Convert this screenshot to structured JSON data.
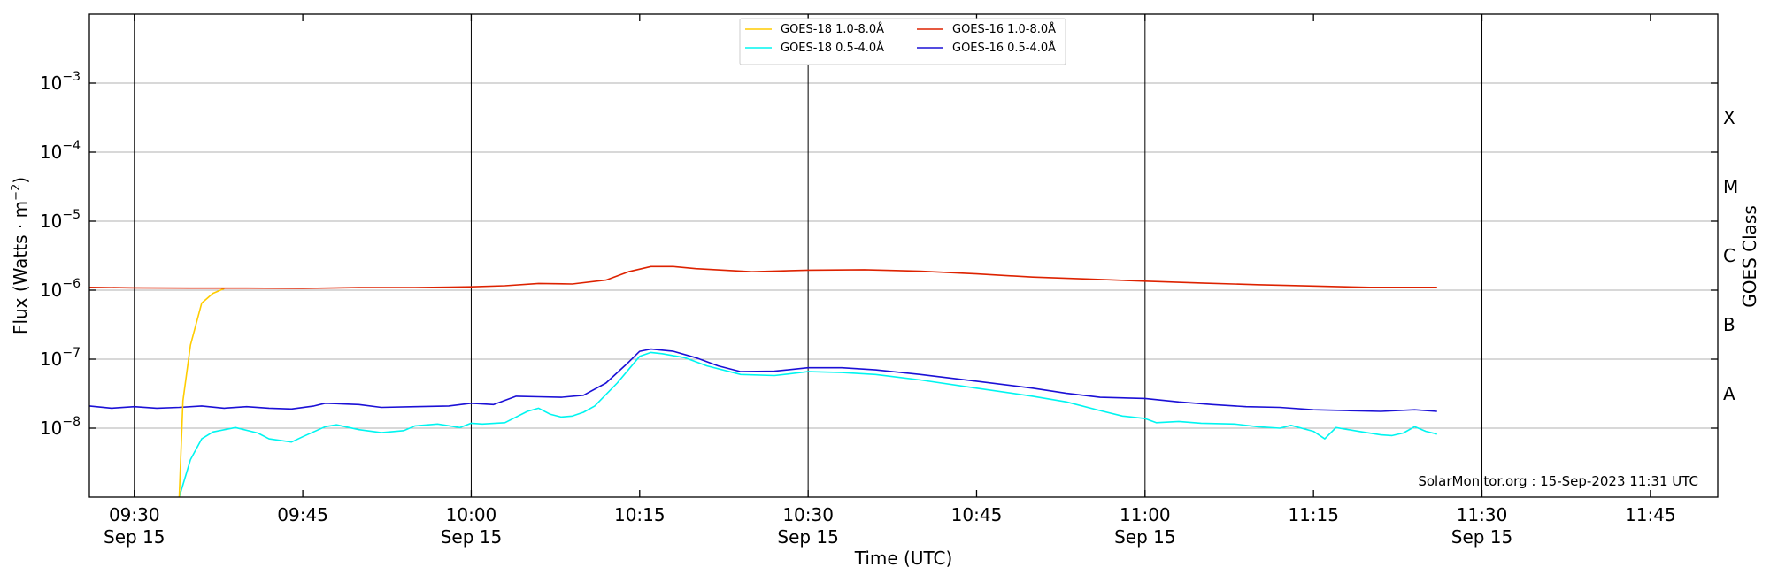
{
  "chart_data": {
    "type": "line",
    "title": "",
    "xlabel": "Time (UTC)",
    "ylabel": "Flux (Watts · m",
    "ylabel_sup": "−2",
    "ylabel_close": ")",
    "y2label": "GOES Class",
    "yscale": "log",
    "xlim": [
      "09:26",
      "11:51"
    ],
    "ylim": [
      1e-09,
      0.01
    ],
    "grid": "horizontal",
    "legend_position": "top-center",
    "credit": "SolarMonitor.org : 15-Sep-2023 11:31 UTC",
    "x_ticks": [
      {
        "time": "09:30",
        "label": "09:30",
        "date": "Sep 15",
        "vline": true
      },
      {
        "time": "09:45",
        "label": "09:45",
        "date": "",
        "vline": false
      },
      {
        "time": "10:00",
        "label": "10:00",
        "date": "Sep 15",
        "vline": true
      },
      {
        "time": "10:15",
        "label": "10:15",
        "date": "",
        "vline": false
      },
      {
        "time": "10:30",
        "label": "10:30",
        "date": "Sep 15",
        "vline": true
      },
      {
        "time": "10:45",
        "label": "10:45",
        "date": "",
        "vline": false
      },
      {
        "time": "11:00",
        "label": "11:00",
        "date": "Sep 15",
        "vline": true
      },
      {
        "time": "11:15",
        "label": "11:15",
        "date": "",
        "vline": false
      },
      {
        "time": "11:30",
        "label": "11:30",
        "date": "Sep 15",
        "vline": true
      },
      {
        "time": "11:45",
        "label": "11:45",
        "date": "",
        "vline": false
      }
    ],
    "y_ticks": [
      {
        "value": 1e-08,
        "base": "10",
        "exp": "−8"
      },
      {
        "value": 1e-07,
        "base": "10",
        "exp": "−7"
      },
      {
        "value": 1e-06,
        "base": "10",
        "exp": "−6"
      },
      {
        "value": 1e-05,
        "base": "10",
        "exp": "−5"
      },
      {
        "value": 0.0001,
        "base": "10",
        "exp": "−4"
      },
      {
        "value": 0.001,
        "base": "10",
        "exp": "−3"
      }
    ],
    "goes_classes": [
      {
        "label": "A",
        "value": 3.16e-08
      },
      {
        "label": "B",
        "value": 3.16e-07
      },
      {
        "label": "C",
        "value": 3.16e-06
      },
      {
        "label": "M",
        "value": 3.16e-05
      },
      {
        "label": "X",
        "value": 0.000316
      }
    ],
    "series": [
      {
        "name": "GOES-18 1.0-8.0Å",
        "color": "#ffcc00",
        "points": [
          [
            "09:34",
            1e-09
          ],
          [
            "09:34:20",
            2.5e-08
          ],
          [
            "09:35",
            1.6e-07
          ],
          [
            "09:36",
            6.5e-07
          ],
          [
            "09:37",
            9e-07
          ],
          [
            "09:38",
            1.05e-06
          ]
        ]
      },
      {
        "name": "GOES-16 1.0-8.0Å",
        "color": "#dd2200",
        "points": [
          [
            "09:26",
            1.1e-06
          ],
          [
            "09:30",
            1.08e-06
          ],
          [
            "09:35",
            1.07e-06
          ],
          [
            "09:40",
            1.07e-06
          ],
          [
            "09:45",
            1.06e-06
          ],
          [
            "09:50",
            1.09e-06
          ],
          [
            "09:55",
            1.09e-06
          ],
          [
            "10:00",
            1.12e-06
          ],
          [
            "10:03",
            1.16e-06
          ],
          [
            "10:06",
            1.25e-06
          ],
          [
            "10:09",
            1.23e-06
          ],
          [
            "10:12",
            1.4e-06
          ],
          [
            "10:14",
            1.85e-06
          ],
          [
            "10:16",
            2.2e-06
          ],
          [
            "10:18",
            2.2e-06
          ],
          [
            "10:20",
            2.05e-06
          ],
          [
            "10:25",
            1.85e-06
          ],
          [
            "10:30",
            1.95e-06
          ],
          [
            "10:35",
            1.98e-06
          ],
          [
            "10:40",
            1.88e-06
          ],
          [
            "10:45",
            1.72e-06
          ],
          [
            "10:50",
            1.55e-06
          ],
          [
            "10:55",
            1.45e-06
          ],
          [
            "11:00",
            1.35e-06
          ],
          [
            "11:05",
            1.27e-06
          ],
          [
            "11:10",
            1.2e-06
          ],
          [
            "11:15",
            1.15e-06
          ],
          [
            "11:20",
            1.1e-06
          ],
          [
            "11:26",
            1.1e-06
          ]
        ]
      },
      {
        "name": "GOES-18 0.5-4.0Å",
        "color": "#00f5f0",
        "points": [
          [
            "09:34",
            1e-09
          ],
          [
            "09:35",
            3.5e-09
          ],
          [
            "09:36",
            7e-09
          ],
          [
            "09:37",
            8.8e-09
          ],
          [
            "09:39",
            1.02e-08
          ],
          [
            "09:41",
            8.5e-09
          ],
          [
            "09:42",
            7e-09
          ],
          [
            "09:44",
            6.3e-09
          ],
          [
            "09:45",
            7.5e-09
          ],
          [
            "09:47",
            1.05e-08
          ],
          [
            "09:48",
            1.12e-08
          ],
          [
            "09:50",
            9.5e-09
          ],
          [
            "09:52",
            8.6e-09
          ],
          [
            "09:54",
            9.2e-09
          ],
          [
            "09:55",
            1.08e-08
          ],
          [
            "09:57",
            1.15e-08
          ],
          [
            "09:59",
            1.02e-08
          ],
          [
            "10:00",
            1.18e-08
          ],
          [
            "10:01",
            1.15e-08
          ],
          [
            "10:03",
            1.2e-08
          ],
          [
            "10:05",
            1.75e-08
          ],
          [
            "10:06",
            1.95e-08
          ],
          [
            "10:07",
            1.6e-08
          ],
          [
            "10:08",
            1.45e-08
          ],
          [
            "10:09",
            1.5e-08
          ],
          [
            "10:10",
            1.7e-08
          ],
          [
            "10:11",
            2.1e-08
          ],
          [
            "10:13",
            4.5e-08
          ],
          [
            "10:15",
            1.1e-07
          ],
          [
            "10:16",
            1.25e-07
          ],
          [
            "10:17",
            1.2e-07
          ],
          [
            "10:19",
            1.05e-07
          ],
          [
            "10:21",
            8e-08
          ],
          [
            "10:24",
            6e-08
          ],
          [
            "10:27",
            5.8e-08
          ],
          [
            "10:30",
            6.6e-08
          ],
          [
            "10:33",
            6.4e-08
          ],
          [
            "10:36",
            6e-08
          ],
          [
            "10:40",
            5e-08
          ],
          [
            "10:45",
            3.8e-08
          ],
          [
            "10:50",
            2.9e-08
          ],
          [
            "10:53",
            2.4e-08
          ],
          [
            "10:56",
            1.8e-08
          ],
          [
            "10:58",
            1.5e-08
          ],
          [
            "11:00",
            1.38e-08
          ],
          [
            "11:01",
            1.2e-08
          ],
          [
            "11:03",
            1.25e-08
          ],
          [
            "11:05",
            1.18e-08
          ],
          [
            "11:08",
            1.15e-08
          ],
          [
            "11:10",
            1.05e-08
          ],
          [
            "11:12",
            1e-08
          ],
          [
            "11:13",
            1.1e-08
          ],
          [
            "11:15",
            9e-09
          ],
          [
            "11:16",
            7e-09
          ],
          [
            "11:17",
            1.02e-08
          ],
          [
            "11:19",
            9e-09
          ],
          [
            "11:21",
            8e-09
          ],
          [
            "11:22",
            7.8e-09
          ],
          [
            "11:23",
            8.5e-09
          ],
          [
            "11:24",
            1.05e-08
          ],
          [
            "11:25",
            9e-09
          ],
          [
            "11:26",
            8.2e-09
          ]
        ]
      },
      {
        "name": "GOES-16 0.5-4.0Å",
        "color": "#1b10d6",
        "points": [
          [
            "09:26",
            2.1e-08
          ],
          [
            "09:28",
            1.95e-08
          ],
          [
            "09:30",
            2.05e-08
          ],
          [
            "09:32",
            1.95e-08
          ],
          [
            "09:34",
            2e-08
          ],
          [
            "09:36",
            2.1e-08
          ],
          [
            "09:38",
            1.95e-08
          ],
          [
            "09:40",
            2.05e-08
          ],
          [
            "09:42",
            1.95e-08
          ],
          [
            "09:44",
            1.9e-08
          ],
          [
            "09:46",
            2.1e-08
          ],
          [
            "09:47",
            2.3e-08
          ],
          [
            "09:50",
            2.2e-08
          ],
          [
            "09:52",
            2e-08
          ],
          [
            "09:55",
            2.05e-08
          ],
          [
            "09:58",
            2.1e-08
          ],
          [
            "10:00",
            2.3e-08
          ],
          [
            "10:02",
            2.2e-08
          ],
          [
            "10:04",
            2.9e-08
          ],
          [
            "10:06",
            2.85e-08
          ],
          [
            "10:08",
            2.8e-08
          ],
          [
            "10:10",
            3e-08
          ],
          [
            "10:12",
            4.5e-08
          ],
          [
            "10:14",
            9e-08
          ],
          [
            "10:15",
            1.3e-07
          ],
          [
            "10:16",
            1.4e-07
          ],
          [
            "10:18",
            1.3e-07
          ],
          [
            "10:20",
            1.05e-07
          ],
          [
            "10:22",
            8e-08
          ],
          [
            "10:24",
            6.6e-08
          ],
          [
            "10:27",
            6.7e-08
          ],
          [
            "10:30",
            7.5e-08
          ],
          [
            "10:33",
            7.5e-08
          ],
          [
            "10:36",
            7e-08
          ],
          [
            "10:40",
            6e-08
          ],
          [
            "10:45",
            4.8e-08
          ],
          [
            "10:50",
            3.8e-08
          ],
          [
            "10:53",
            3.2e-08
          ],
          [
            "10:56",
            2.8e-08
          ],
          [
            "11:00",
            2.7e-08
          ],
          [
            "11:03",
            2.4e-08
          ],
          [
            "11:06",
            2.2e-08
          ],
          [
            "11:09",
            2.05e-08
          ],
          [
            "11:12",
            2e-08
          ],
          [
            "11:15",
            1.85e-08
          ],
          [
            "11:18",
            1.8e-08
          ],
          [
            "11:21",
            1.75e-08
          ],
          [
            "11:24",
            1.85e-08
          ],
          [
            "11:26",
            1.75e-08
          ]
        ]
      }
    ]
  }
}
